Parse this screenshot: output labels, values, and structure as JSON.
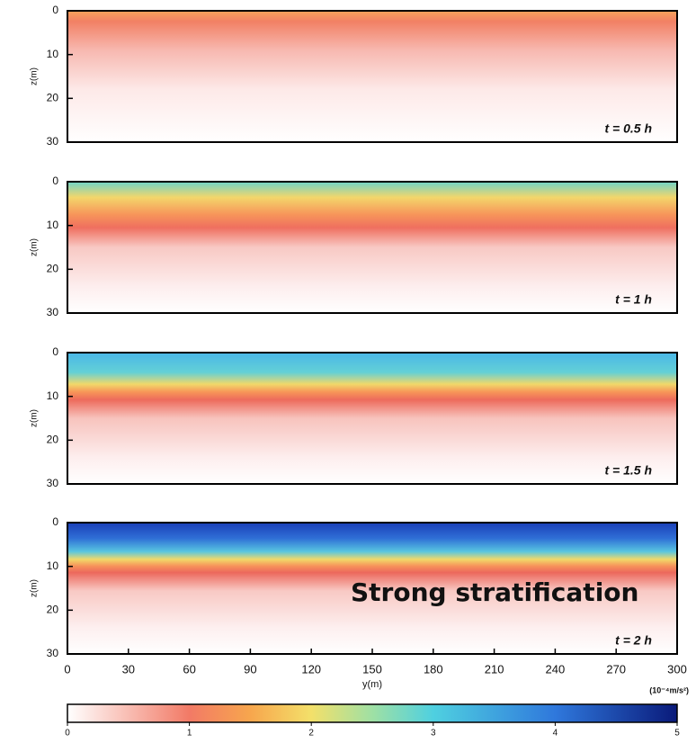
{
  "chart_data": [
    {
      "type": "heatmap",
      "annotation": "t = 0.5 h",
      "ylabel": "z(m)",
      "ylim": [
        0,
        30
      ],
      "y_inverted": true,
      "yticks": [
        0,
        10,
        20,
        30
      ],
      "xlim": [
        0,
        300
      ]
    },
    {
      "type": "heatmap",
      "annotation": "t = 1 h",
      "ylabel": "z(m)",
      "ylim": [
        0,
        30
      ],
      "y_inverted": true,
      "yticks": [
        0,
        10,
        20,
        30
      ],
      "xlim": [
        0,
        300
      ]
    },
    {
      "type": "heatmap",
      "annotation": "t = 1.5 h",
      "ylabel": "z(m)",
      "ylim": [
        0,
        30
      ],
      "y_inverted": true,
      "yticks": [
        0,
        10,
        20,
        30
      ],
      "xlim": [
        0,
        300
      ]
    },
    {
      "type": "heatmap",
      "annotation": "t = 2 h",
      "ylabel": "z(m)",
      "ylim": [
        0,
        30
      ],
      "y_inverted": true,
      "yticks": [
        0,
        10,
        20,
        30
      ],
      "xlim": [
        0,
        300
      ],
      "xlabel": "y(m)",
      "xticks": [
        0,
        30,
        60,
        90,
        120,
        150,
        180,
        210,
        240,
        270,
        300
      ]
    }
  ],
  "colorbar": {
    "label": "(10⁻⁴m/s²)",
    "lim": [
      0,
      5
    ],
    "ticks": [
      0,
      1,
      2,
      3,
      4,
      5
    ]
  },
  "callout": "Strong stratification"
}
